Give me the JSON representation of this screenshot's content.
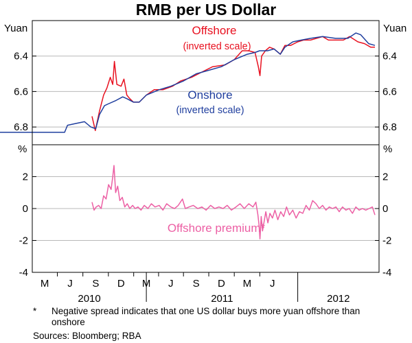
{
  "chart_data": {
    "title": "RMB per US Dollar",
    "panels": [
      {
        "type": "line",
        "unit_label": "Yuan",
        "scale": "inverted",
        "ylim": [
          6.2,
          6.9
        ],
        "yticks": [
          6.4,
          6.6,
          6.8
        ],
        "series": [
          {
            "name": "Offshore",
            "name_sub": "(inverted scale)",
            "color": "#e8101f",
            "points": [
              [
                "2010-08-23",
                6.74
              ],
              [
                "2010-08-31",
                6.82
              ],
              [
                "2010-09-10",
                6.71
              ],
              [
                "2010-09-20",
                6.62
              ],
              [
                "2010-09-28",
                6.58
              ],
              [
                "2010-10-06",
                6.52
              ],
              [
                "2010-10-12",
                6.56
              ],
              [
                "2010-10-16",
                6.43
              ],
              [
                "2010-10-22",
                6.56
              ],
              [
                "2010-11-01",
                6.57
              ],
              [
                "2010-11-08",
                6.53
              ],
              [
                "2010-11-15",
                6.62
              ],
              [
                "2010-11-22",
                6.64
              ],
              [
                "2010-12-01",
                6.66
              ],
              [
                "2010-12-15",
                6.66
              ],
              [
                "2011-01-01",
                6.62
              ],
              [
                "2011-01-20",
                6.59
              ],
              [
                "2011-02-10",
                6.59
              ],
              [
                "2011-03-05",
                6.57
              ],
              [
                "2011-03-25",
                6.54
              ],
              [
                "2011-04-20",
                6.52
              ],
              [
                "2011-05-15",
                6.49
              ],
              [
                "2011-06-10",
                6.46
              ],
              [
                "2011-07-10",
                6.45
              ],
              [
                "2011-08-01",
                6.42
              ],
              [
                "2011-08-20",
                6.37
              ],
              [
                "2011-09-05",
                6.37
              ],
              [
                "2011-09-20",
                6.38
              ],
              [
                "2011-09-28",
                6.46
              ],
              [
                "2011-10-02",
                6.51
              ],
              [
                "2011-10-06",
                6.4
              ],
              [
                "2011-10-15",
                6.37
              ],
              [
                "2011-10-25",
                6.35
              ],
              [
                "2011-11-05",
                6.36
              ],
              [
                "2011-11-20",
                6.39
              ],
              [
                "2011-12-01",
                6.34
              ],
              [
                "2011-12-15",
                6.34
              ],
              [
                "2012-01-01",
                6.32
              ],
              [
                "2012-01-15",
                6.31
              ],
              [
                "2012-02-01",
                6.31
              ],
              [
                "2012-03-01",
                6.29
              ],
              [
                "2012-03-15",
                6.31
              ],
              [
                "2012-04-01",
                6.31
              ],
              [
                "2012-04-20",
                6.31
              ],
              [
                "2012-05-05",
                6.29
              ],
              [
                "2012-05-25",
                6.32
              ],
              [
                "2012-06-10",
                6.33
              ],
              [
                "2012-06-25",
                6.35
              ],
              [
                "2012-07-05",
                6.35
              ]
            ]
          },
          {
            "name": "Onshore",
            "name_sub": "(inverted scale)",
            "color": "#1f3e9e",
            "points": [
              [
                "2010-01-01",
                6.83
              ],
              [
                "2010-04-01",
                6.83
              ],
              [
                "2010-06-18",
                6.83
              ],
              [
                "2010-06-25",
                6.79
              ],
              [
                "2010-07-15",
                6.78
              ],
              [
                "2010-08-05",
                6.77
              ],
              [
                "2010-08-20",
                6.8
              ],
              [
                "2010-09-01",
                6.81
              ],
              [
                "2010-09-10",
                6.73
              ],
              [
                "2010-09-22",
                6.68
              ],
              [
                "2010-10-01",
                6.67
              ],
              [
                "2010-10-20",
                6.65
              ],
              [
                "2010-11-05",
                6.63
              ],
              [
                "2010-11-15",
                6.64
              ],
              [
                "2010-12-01",
                6.66
              ],
              [
                "2010-12-15",
                6.66
              ],
              [
                "2011-01-01",
                6.62
              ],
              [
                "2011-02-01",
                6.59
              ],
              [
                "2011-03-01",
                6.57
              ],
              [
                "2011-04-01",
                6.54
              ],
              [
                "2011-05-01",
                6.5
              ],
              [
                "2011-06-01",
                6.48
              ],
              [
                "2011-07-01",
                6.46
              ],
              [
                "2011-08-01",
                6.42
              ],
              [
                "2011-09-01",
                6.39
              ],
              [
                "2011-09-20",
                6.38
              ],
              [
                "2011-10-01",
                6.37
              ],
              [
                "2011-10-20",
                6.37
              ],
              [
                "2011-11-05",
                6.36
              ],
              [
                "2011-11-20",
                6.39
              ],
              [
                "2011-12-01",
                6.35
              ],
              [
                "2011-12-20",
                6.32
              ],
              [
                "2012-01-10",
                6.31
              ],
              [
                "2012-02-01",
                6.3
              ],
              [
                "2012-03-01",
                6.29
              ],
              [
                "2012-04-01",
                6.3
              ],
              [
                "2012-05-01",
                6.3
              ],
              [
                "2012-05-20",
                6.27
              ],
              [
                "2012-06-01",
                6.28
              ],
              [
                "2012-06-20",
                6.33
              ],
              [
                "2012-07-05",
                6.34
              ]
            ]
          }
        ]
      },
      {
        "type": "line",
        "unit_label": "%",
        "ylim": [
          -4,
          4
        ],
        "yticks": [
          -4,
          -2,
          0,
          2
        ],
        "series": [
          {
            "name": "Offshore premium*",
            "color": "#ec5fa4",
            "points": [
              [
                "2010-08-23",
                0.4
              ],
              [
                "2010-08-28",
                -0.1
              ],
              [
                "2010-09-02",
                0.1
              ],
              [
                "2010-09-08",
                0.2
              ],
              [
                "2010-09-14",
                0.0
              ],
              [
                "2010-09-20",
                0.8
              ],
              [
                "2010-09-26",
                0.6
              ],
              [
                "2010-10-02",
                1.5
              ],
              [
                "2010-10-08",
                1.2
              ],
              [
                "2010-10-12",
                2.0
              ],
              [
                "2010-10-15",
                2.7
              ],
              [
                "2010-10-19",
                1.0
              ],
              [
                "2010-10-24",
                1.4
              ],
              [
                "2010-10-29",
                0.5
              ],
              [
                "2010-11-04",
                0.7
              ],
              [
                "2010-11-10",
                0.1
              ],
              [
                "2010-11-16",
                0.3
              ],
              [
                "2010-11-22",
                0.0
              ],
              [
                "2010-11-29",
                0.2
              ],
              [
                "2010-12-05",
                0.0
              ],
              [
                "2010-12-12",
                0.1
              ],
              [
                "2010-12-19",
                -0.1
              ],
              [
                "2010-12-27",
                0.2
              ],
              [
                "2011-01-05",
                0.0
              ],
              [
                "2011-01-13",
                0.3
              ],
              [
                "2011-01-22",
                0.1
              ],
              [
                "2011-02-01",
                0.2
              ],
              [
                "2011-02-10",
                -0.1
              ],
              [
                "2011-02-19",
                0.3
              ],
              [
                "2011-03-01",
                0.1
              ],
              [
                "2011-03-10",
                0.0
              ],
              [
                "2011-03-19",
                0.2
              ],
              [
                "2011-03-29",
                0.6
              ],
              [
                "2011-04-05",
                0.0
              ],
              [
                "2011-04-14",
                0.1
              ],
              [
                "2011-04-24",
                0.2
              ],
              [
                "2011-05-05",
                0.0
              ],
              [
                "2011-05-15",
                0.1
              ],
              [
                "2011-05-25",
                -0.1
              ],
              [
                "2011-06-05",
                0.2
              ],
              [
                "2011-06-15",
                0.0
              ],
              [
                "2011-06-25",
                0.1
              ],
              [
                "2011-07-05",
                0.0
              ],
              [
                "2011-07-15",
                0.2
              ],
              [
                "2011-07-25",
                -0.1
              ],
              [
                "2011-08-05",
                0.1
              ],
              [
                "2011-08-15",
                0.3
              ],
              [
                "2011-08-25",
                0.0
              ],
              [
                "2011-09-05",
                0.3
              ],
              [
                "2011-09-15",
                0.1
              ],
              [
                "2011-09-22",
                0.4
              ],
              [
                "2011-09-27",
                -0.4
              ],
              [
                "2011-09-30",
                -1.1
              ],
              [
                "2011-10-02",
                -1.9
              ],
              [
                "2011-10-05",
                -0.5
              ],
              [
                "2011-10-08",
                -1.4
              ],
              [
                "2011-10-12",
                -0.8
              ],
              [
                "2011-10-16",
                -0.2
              ],
              [
                "2011-10-21",
                -0.9
              ],
              [
                "2011-10-26",
                -0.3
              ],
              [
                "2011-11-01",
                -0.6
              ],
              [
                "2011-11-07",
                -0.1
              ],
              [
                "2011-11-14",
                -0.7
              ],
              [
                "2011-11-21",
                -0.2
              ],
              [
                "2011-11-28",
                -0.5
              ],
              [
                "2011-12-05",
                0.1
              ],
              [
                "2011-12-12",
                -0.4
              ],
              [
                "2011-12-20",
                -0.1
              ],
              [
                "2011-12-28",
                -0.6
              ],
              [
                "2012-01-05",
                -0.2
              ],
              [
                "2012-01-13",
                -0.3
              ],
              [
                "2012-01-21",
                0.2
              ],
              [
                "2012-01-29",
                -0.1
              ],
              [
                "2012-02-06",
                0.5
              ],
              [
                "2012-02-14",
                0.3
              ],
              [
                "2012-02-22",
                0.0
              ],
              [
                "2012-03-01",
                0.2
              ],
              [
                "2012-03-09",
                -0.1
              ],
              [
                "2012-03-17",
                0.1
              ],
              [
                "2012-03-25",
                0.0
              ],
              [
                "2012-04-02",
                0.1
              ],
              [
                "2012-04-10",
                -0.2
              ],
              [
                "2012-04-18",
                0.1
              ],
              [
                "2012-04-26",
                -0.1
              ],
              [
                "2012-05-04",
                0.0
              ],
              [
                "2012-05-12",
                -0.3
              ],
              [
                "2012-05-20",
                0.1
              ],
              [
                "2012-05-28",
                -0.1
              ],
              [
                "2012-06-05",
                0.0
              ],
              [
                "2012-06-13",
                -0.1
              ],
              [
                "2012-06-21",
                0.0
              ],
              [
                "2012-06-29",
                0.1
              ],
              [
                "2012-07-05",
                -0.4
              ]
            ]
          }
        ]
      }
    ],
    "x": {
      "start": "2010-04-01",
      "end": "2012-07-15",
      "month_labels": [
        {
          "date": "2010-05-01",
          "label": "M"
        },
        {
          "date": "2010-07-01",
          "label": "J"
        },
        {
          "date": "2010-09-01",
          "label": "S"
        },
        {
          "date": "2010-11-01",
          "label": "D"
        },
        {
          "date": "2011-01-01",
          "label": "M"
        },
        {
          "date": "2011-03-01",
          "label": "J"
        },
        {
          "date": "2011-05-01",
          "label": "S"
        },
        {
          "date": "2011-07-01",
          "label": "D"
        },
        {
          "date": "2011-09-01",
          "label": "M"
        },
        {
          "date": "2011-11-01",
          "label": "J"
        }
      ],
      "year_labels": [
        {
          "label": "2010",
          "from": "2010-04-01",
          "to": "2011-01-01"
        },
        {
          "label": "2011",
          "from": "2011-01-01",
          "to": "2012-01-01"
        },
        {
          "label": "2012",
          "from": "2012-01-01",
          "to": "2012-07-15"
        }
      ],
      "year_boundaries": [
        "2011-01-01",
        "2012-01-01"
      ]
    },
    "notes": {
      "footnote_marker": "*",
      "footnote": "Negative spread indicates that one US dollar buys more yuan offshore than onshore",
      "sources": "Sources: Bloomberg; RBA"
    }
  }
}
